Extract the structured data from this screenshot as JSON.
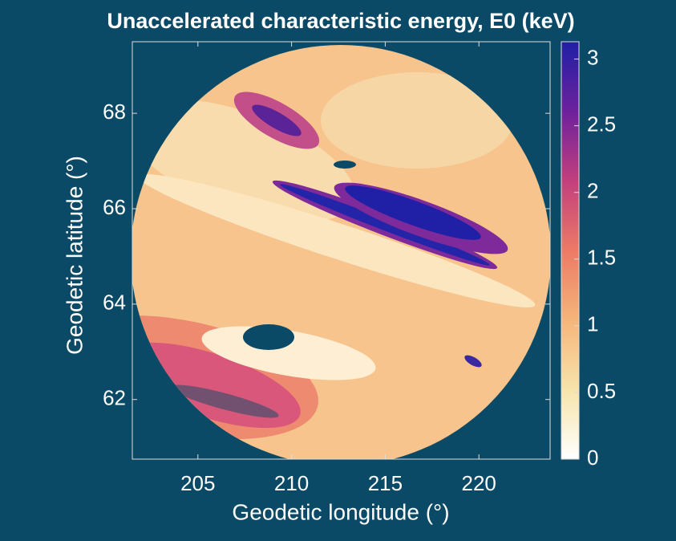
{
  "chart_data": {
    "type": "heatmap",
    "title": "Unaccelerated characteristic energy, E0 (keV)",
    "x_label": "Geodetic longitude (°)",
    "y_label": "Geodetic latitude (°)",
    "xlim": [
      201.5,
      223.8
    ],
    "xticks": [
      205,
      210,
      215,
      220
    ],
    "ylim": [
      60.75,
      69.5
    ],
    "yticks": [
      62,
      64,
      66,
      68
    ],
    "colorbar": {
      "clim": [
        0,
        3.13
      ],
      "ticks": [
        0,
        0.5,
        1,
        1.5,
        2,
        2.5,
        3
      ],
      "colormap": [
        "#ffffff",
        "#f6e4ab",
        "#f5b57a",
        "#ec7a66",
        "#c23f7c",
        "#6d219c",
        "#2020a6"
      ]
    }
  }
}
